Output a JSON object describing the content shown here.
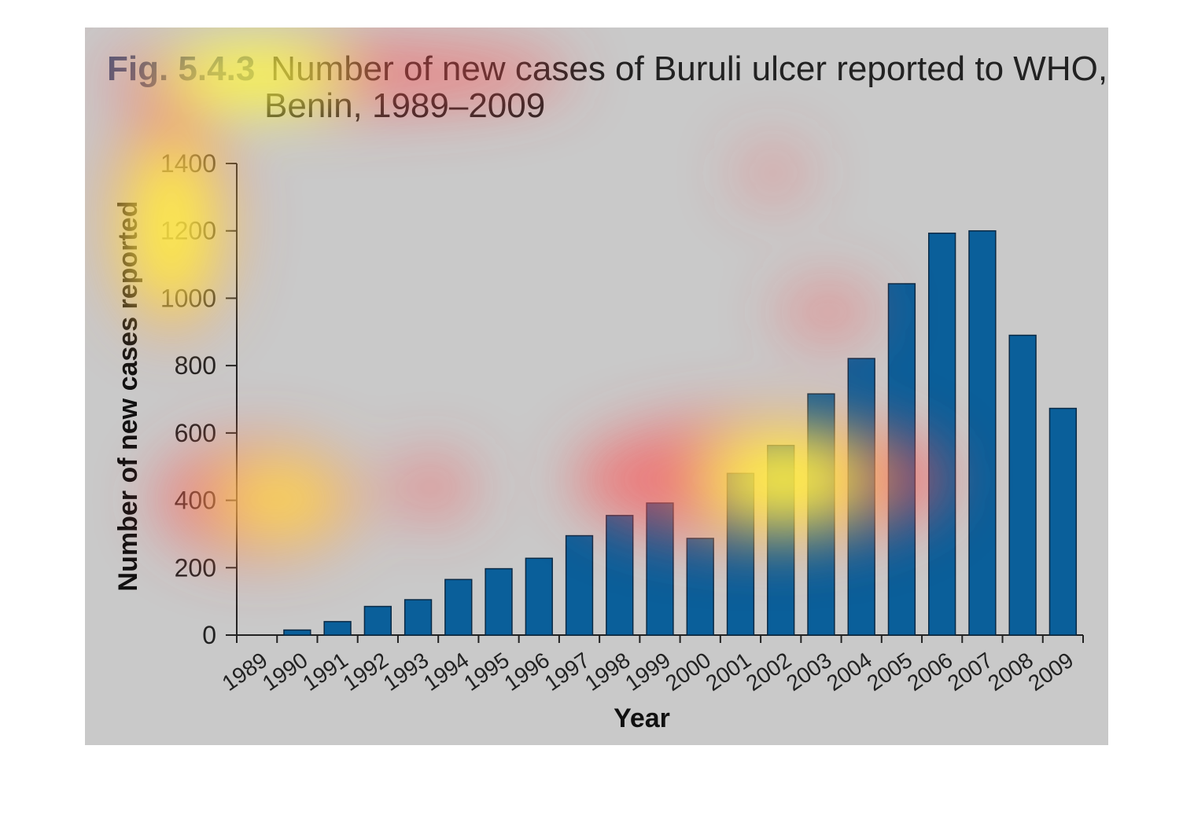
{
  "figure": {
    "fig_label": "Fig. 5.4.3",
    "title_line1": "Number of new cases of Buruli ulcer reported to WHO,",
    "title_line2": "Benin, 1989–2009"
  },
  "colors": {
    "panel_background": "#c9c9c9",
    "bar_fill": "#0a5f9a",
    "bar_stroke": "#0a2a45",
    "axis": "#222222",
    "fig_label": "#4a5a7a"
  },
  "chart_data": {
    "type": "bar",
    "title": "Number of new cases of Buruli ulcer reported to WHO, Benin, 1989–2009",
    "xlabel": "Year",
    "ylabel": "Number of new cases reported",
    "ylim": [
      0,
      1400
    ],
    "yticks": [
      0,
      200,
      400,
      600,
      800,
      1000,
      1200,
      1400
    ],
    "categories": [
      "1989",
      "1990",
      "1991",
      "1992",
      "1993",
      "1994",
      "1995",
      "1996",
      "1997",
      "1998",
      "1999",
      "2000",
      "2001",
      "2002",
      "2003",
      "2004",
      "2005",
      "2006",
      "2007",
      "2008",
      "2009"
    ],
    "values": [
      0,
      15,
      40,
      85,
      105,
      165,
      197,
      228,
      295,
      355,
      392,
      287,
      480,
      563,
      716,
      821,
      1043,
      1193,
      1200,
      890,
      673
    ],
    "grid": false,
    "legend": "none",
    "overlay": "attention heatmap"
  }
}
